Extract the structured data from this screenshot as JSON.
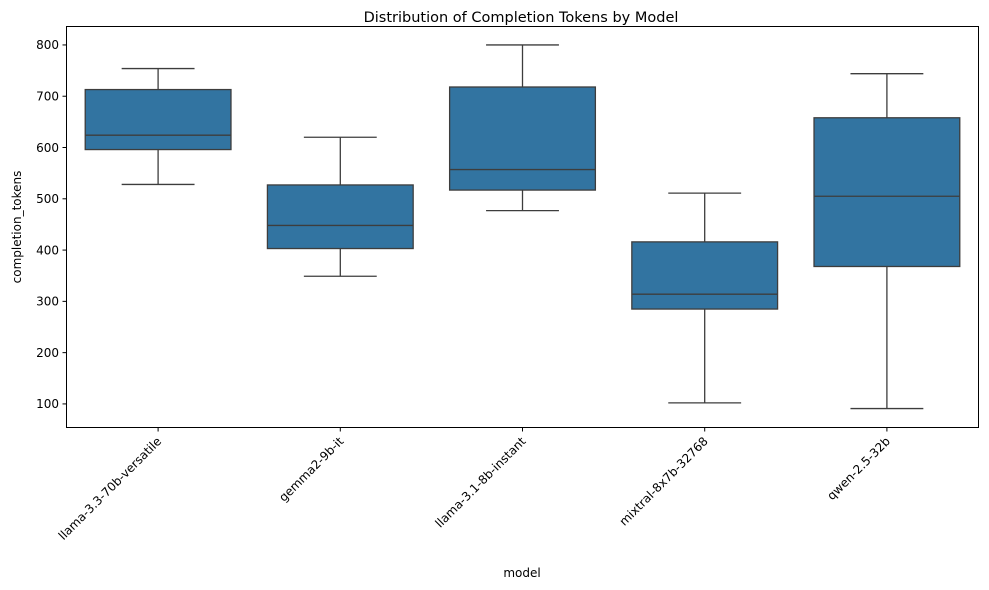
{
  "chart_data": {
    "type": "box",
    "title": "Distribution of Completion Tokens by Model",
    "xlabel": "model",
    "ylabel": "completion_tokens",
    "ylim": [
      55,
      835
    ],
    "yticks": [
      100,
      200,
      300,
      400,
      500,
      600,
      700,
      800
    ],
    "ytick_labels": [
      "100",
      "200",
      "300",
      "400",
      "500",
      "600",
      "700",
      "800"
    ],
    "box_color": "#3274a1",
    "line_color": "#3d3d3d",
    "grid": false,
    "legend": "none",
    "categories": [
      "llama-3.3-70b-versatile",
      "gemma2-9b-it",
      "llama-3.1-8b-instant",
      "mixtral-8x7b-32768",
      "qwen-2.5-32b"
    ],
    "boxes": [
      {
        "category": "llama-3.3-70b-versatile",
        "whislo": 528,
        "q1": 596,
        "med": 624,
        "q3": 713,
        "whishi": 754
      },
      {
        "category": "gemma2-9b-it",
        "whislo": 349,
        "q1": 403,
        "med": 448,
        "q3": 527,
        "whishi": 620
      },
      {
        "category": "llama-3.1-8b-instant",
        "whislo": 477,
        "q1": 517,
        "med": 557,
        "q3": 718,
        "whishi": 800
      },
      {
        "category": "mixtral-8x7b-32768",
        "whislo": 102,
        "q1": 285,
        "med": 314,
        "q3": 416,
        "whishi": 511
      },
      {
        "category": "qwen-2.5-32b",
        "whislo": 91,
        "q1": 368,
        "med": 505,
        "q3": 658,
        "whishi": 744
      }
    ]
  }
}
